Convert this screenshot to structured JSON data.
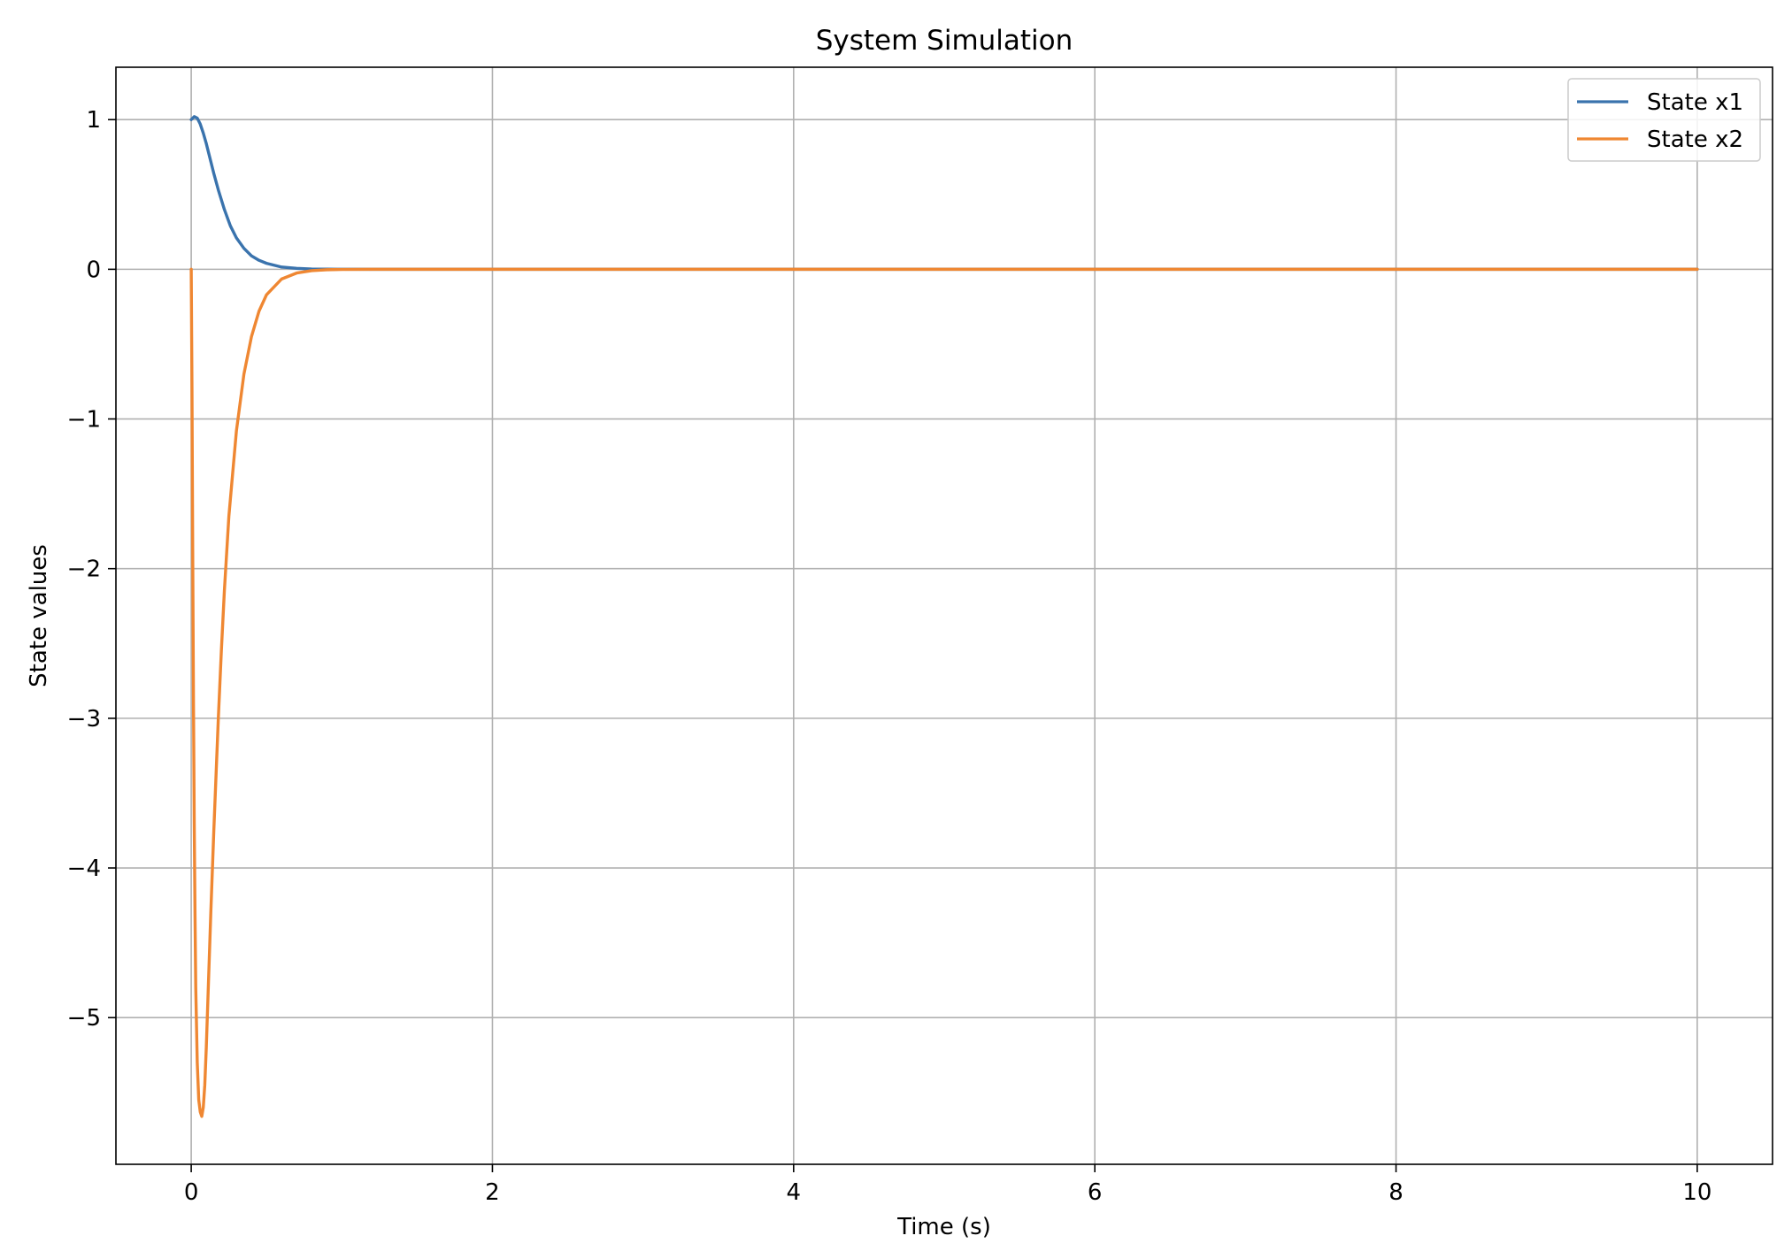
{
  "chart_data": {
    "type": "line",
    "title": "System Simulation",
    "xlabel": "Time (s)",
    "ylabel": "State values",
    "xlim": [
      -0.5,
      10.5
    ],
    "ylim": [
      -5.98,
      1.35
    ],
    "xticks": [
      0,
      2,
      4,
      6,
      8,
      10
    ],
    "xtick_labels": [
      "0",
      "2",
      "4",
      "6",
      "8",
      "10"
    ],
    "yticks": [
      1,
      0,
      -1,
      -2,
      -3,
      -4,
      -5
    ],
    "ytick_labels": [
      "1",
      "0",
      "−1",
      "−2",
      "−3",
      "−4",
      "−5"
    ],
    "grid": true,
    "legend_position": "top-right",
    "series": [
      {
        "name": "State x1",
        "color": "#3a73ad",
        "x": [
          0,
          0.02,
          0.04,
          0.06,
          0.08,
          0.1,
          0.12,
          0.15,
          0.18,
          0.22,
          0.26,
          0.3,
          0.35,
          0.4,
          0.45,
          0.5,
          0.6,
          0.7,
          0.8,
          0.9,
          1.0,
          1.2,
          1.5,
          2.0,
          3.0,
          5.0,
          7.5,
          10.0
        ],
        "values": [
          1.0,
          1.02,
          1.01,
          0.97,
          0.91,
          0.84,
          0.76,
          0.64,
          0.53,
          0.4,
          0.29,
          0.21,
          0.14,
          0.09,
          0.06,
          0.04,
          0.015,
          0.006,
          0.002,
          0.0008,
          0.0003,
          0,
          0,
          0,
          0,
          0,
          0,
          0
        ]
      },
      {
        "name": "State x2",
        "color": "#ef8732",
        "x": [
          0,
          0.005,
          0.01,
          0.015,
          0.02,
          0.025,
          0.03,
          0.04,
          0.05,
          0.06,
          0.07,
          0.08,
          0.09,
          0.1,
          0.11,
          0.12,
          0.13,
          0.15,
          0.18,
          0.2,
          0.22,
          0.25,
          0.3,
          0.35,
          0.4,
          0.45,
          0.5,
          0.6,
          0.7,
          0.8,
          0.9,
          1.0,
          1.2,
          1.5,
          2.0,
          3.0,
          5.0,
          7.5,
          10.0
        ],
        "values": [
          0,
          -0.8,
          -1.9,
          -2.9,
          -3.7,
          -4.3,
          -4.8,
          -5.3,
          -5.55,
          -5.63,
          -5.66,
          -5.6,
          -5.45,
          -5.2,
          -4.9,
          -4.6,
          -4.3,
          -3.75,
          -3.0,
          -2.55,
          -2.15,
          -1.65,
          -1.08,
          -0.7,
          -0.45,
          -0.28,
          -0.17,
          -0.065,
          -0.025,
          -0.009,
          -0.003,
          -0.001,
          0,
          0,
          0,
          0,
          0,
          0,
          0
        ]
      }
    ]
  }
}
